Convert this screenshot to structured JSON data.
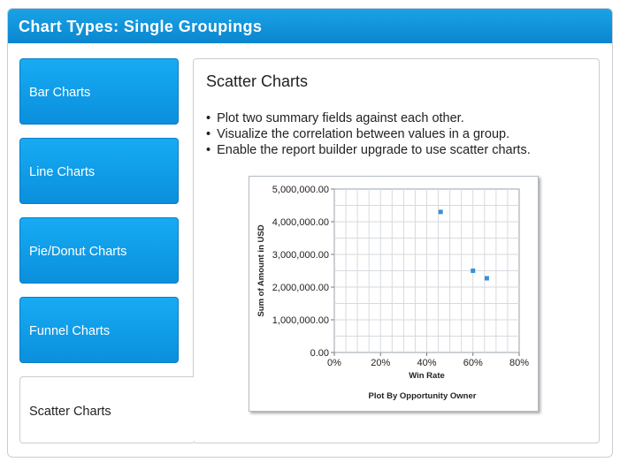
{
  "header": {
    "title": "Chart Types: Single Groupings"
  },
  "tabs": [
    {
      "label": "Bar Charts"
    },
    {
      "label": "Line Charts"
    },
    {
      "label": "Pie/Donut Charts"
    },
    {
      "label": "Funnel Charts"
    },
    {
      "label": "Scatter Charts",
      "active": true
    }
  ],
  "content": {
    "title": "Scatter Charts",
    "bullets": [
      "Plot two summary fields against each other.",
      "Visualize the correlation between values in a group.",
      "Enable the report builder upgrade to use scatter charts."
    ]
  },
  "colors": {
    "header": "#0d8fd8",
    "tab": "#129de8",
    "point": "#3a8fd6"
  },
  "chart_data": {
    "type": "scatter",
    "title": "Plot By Opportunity Owner",
    "xlabel": "Win Rate",
    "ylabel": "Sum of Amount in USD",
    "xlim": [
      0,
      80
    ],
    "ylim": [
      0,
      5000000
    ],
    "x_ticks": [
      "0%",
      "20%",
      "40%",
      "60%",
      "80%"
    ],
    "y_ticks": [
      "0.00",
      "1,000,000.00",
      "2,000,000.00",
      "3,000,000.00",
      "4,000,000.00",
      "5,000,000.00"
    ],
    "grid": true,
    "points": [
      {
        "x": 46,
        "y": 4300000
      },
      {
        "x": 60,
        "y": 2500000
      },
      {
        "x": 66,
        "y": 2270000
      }
    ]
  }
}
